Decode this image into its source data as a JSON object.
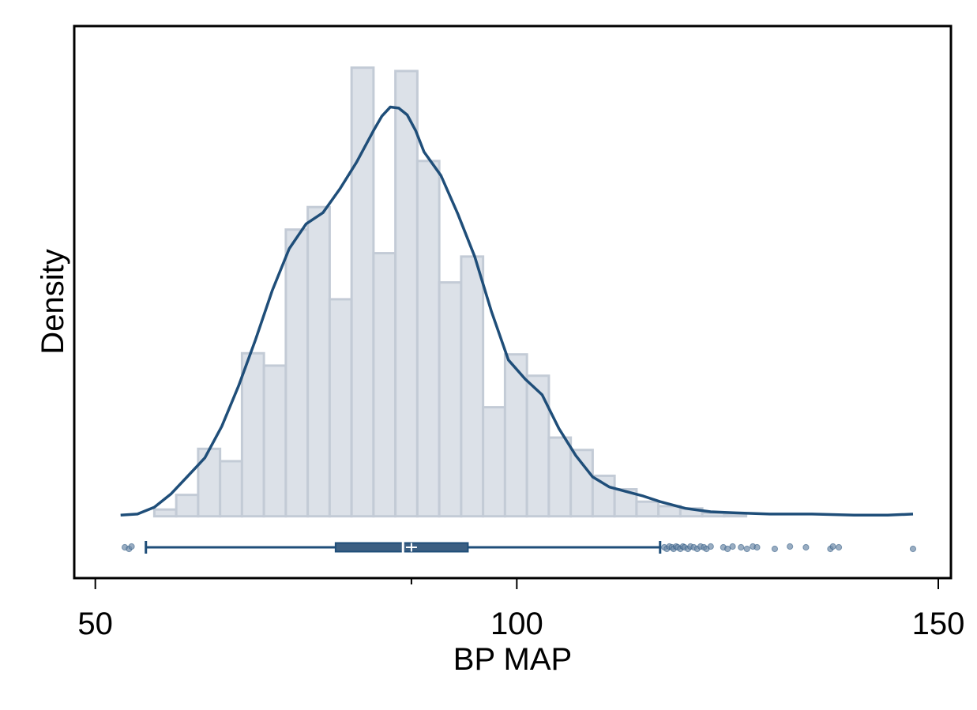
{
  "chart_data": {
    "type": "histogram",
    "xlabel": "BP MAP",
    "ylabel": "Density",
    "xlim": [
      47.5,
      151.5
    ],
    "ylim": [
      -0.0055,
      0.0436
    ],
    "x_ticks": [
      50,
      100,
      150
    ],
    "y_ticks_shown": false,
    "grid": false,
    "legend": "none",
    "bin_width": 2.6,
    "bins": [
      {
        "start": 57.0,
        "density": 0.0006
      },
      {
        "start": 59.6,
        "density": 0.0019
      },
      {
        "start": 62.2,
        "density": 0.006
      },
      {
        "start": 64.8,
        "density": 0.0049
      },
      {
        "start": 67.4,
        "density": 0.0145
      },
      {
        "start": 70.0,
        "density": 0.0134
      },
      {
        "start": 72.6,
        "density": 0.0255
      },
      {
        "start": 75.2,
        "density": 0.0275
      },
      {
        "start": 77.8,
        "density": 0.0193
      },
      {
        "start": 80.4,
        "density": 0.0399
      },
      {
        "start": 83.0,
        "density": 0.0234
      },
      {
        "start": 85.6,
        "density": 0.0396
      },
      {
        "start": 88.2,
        "density": 0.0316
      },
      {
        "start": 90.8,
        "density": 0.0208
      },
      {
        "start": 93.4,
        "density": 0.0231
      },
      {
        "start": 96.0,
        "density": 0.0097
      },
      {
        "start": 98.6,
        "density": 0.0144
      },
      {
        "start": 101.2,
        "density": 0.0125
      },
      {
        "start": 103.8,
        "density": 0.007
      },
      {
        "start": 106.4,
        "density": 0.0059
      },
      {
        "start": 109.0,
        "density": 0.0036
      },
      {
        "start": 111.6,
        "density": 0.0024
      },
      {
        "start": 114.2,
        "density": 0.0013
      },
      {
        "start": 116.8,
        "density": 0.0009
      },
      {
        "start": 119.4,
        "density": 0.0007
      },
      {
        "start": 122.0,
        "density": 0.0003
      },
      {
        "start": 124.6,
        "density": 0.0002
      }
    ],
    "density_curve": {
      "x": [
        53,
        55,
        57,
        59,
        61,
        63,
        65,
        67,
        69,
        71,
        73,
        75,
        77,
        79,
        81,
        83,
        84,
        85,
        86,
        87,
        88,
        89,
        91,
        93,
        95,
        97,
        99,
        101,
        103,
        105,
        107,
        109,
        111,
        113,
        115,
        117,
        120,
        123,
        126,
        130,
        135,
        140,
        144,
        147
      ],
      "y": [
        0.0001,
        0.0002,
        0.0008,
        0.002,
        0.0036,
        0.0052,
        0.008,
        0.0116,
        0.0157,
        0.0201,
        0.0238,
        0.026,
        0.027,
        0.0291,
        0.0315,
        0.0343,
        0.0356,
        0.0364,
        0.0363,
        0.0357,
        0.0343,
        0.0324,
        0.0303,
        0.0269,
        0.0231,
        0.0182,
        0.0139,
        0.0122,
        0.0108,
        0.0078,
        0.0054,
        0.0035,
        0.0026,
        0.0022,
        0.0018,
        0.0013,
        0.0007,
        0.0004,
        0.0003,
        0.0002,
        0.0002,
        0.0001,
        0.0001,
        0.0002
      ]
    },
    "boxplot": {
      "whisker_low": 56.0,
      "q1": 78.5,
      "median": 86.5,
      "mean": 87.5,
      "q3": 94.2,
      "whisker_high": 117.0,
      "outliers": [
        53.5,
        54.0,
        54.3,
        117.5,
        117.8,
        118.1,
        118.4,
        118.6,
        118.9,
        119.1,
        119.4,
        119.7,
        119.9,
        120.3,
        120.6,
        121.0,
        121.4,
        121.8,
        122.2,
        122.5,
        123.0,
        124.5,
        125.0,
        125.6,
        126.6,
        127.3,
        128.0,
        128.5,
        130.6,
        132.4,
        134.3,
        137.2,
        137.5,
        138.2,
        147.0
      ]
    },
    "colors": {
      "bar_fill": "#dce1e8",
      "bar_stroke": "#c3cbd6",
      "curve": "#1f4e79",
      "box_fill": "#3c5f82",
      "box_stroke": "#1f4e79",
      "outlier": "#6e8aa8"
    }
  }
}
